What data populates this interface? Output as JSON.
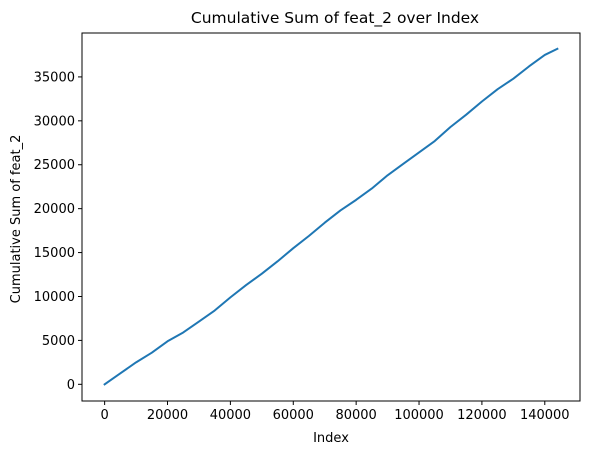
{
  "chart_data": {
    "type": "line",
    "title": "Cumulative Sum of feat_2 over Index",
    "xlabel": "Index",
    "ylabel": "Cumulative Sum of feat_2",
    "xlim": [
      -7200,
      151200
    ],
    "ylim": [
      -1900,
      40000
    ],
    "xticks": [
      0,
      20000,
      40000,
      60000,
      80000,
      100000,
      120000,
      140000
    ],
    "xtick_labels": [
      "0",
      "20000",
      "40000",
      "60000",
      "80000",
      "100000",
      "120000",
      "140000"
    ],
    "yticks": [
      0,
      5000,
      10000,
      15000,
      20000,
      25000,
      30000,
      35000
    ],
    "ytick_labels": [
      "0",
      "5000",
      "10000",
      "15000",
      "20000",
      "25000",
      "30000",
      "35000"
    ],
    "grid": false,
    "legend": "none",
    "series": [
      {
        "color": "#1f77b4",
        "x": [
          0,
          5000,
          10000,
          15000,
          20000,
          25000,
          30000,
          35000,
          40000,
          45000,
          50000,
          55000,
          60000,
          65000,
          70000,
          75000,
          80000,
          85000,
          90000,
          95000,
          100000,
          105000,
          110000,
          115000,
          120000,
          125000,
          130000,
          135000,
          140000,
          144000
        ],
        "y": [
          0,
          1250,
          2500,
          3600,
          4900,
          5900,
          7150,
          8400,
          9900,
          11300,
          12600,
          14000,
          15500,
          16900,
          18400,
          19800,
          21000,
          22300,
          23800,
          25100,
          26400,
          27700,
          29300,
          30700,
          32200,
          33600,
          34800,
          36200,
          37500,
          38200
        ]
      }
    ]
  }
}
